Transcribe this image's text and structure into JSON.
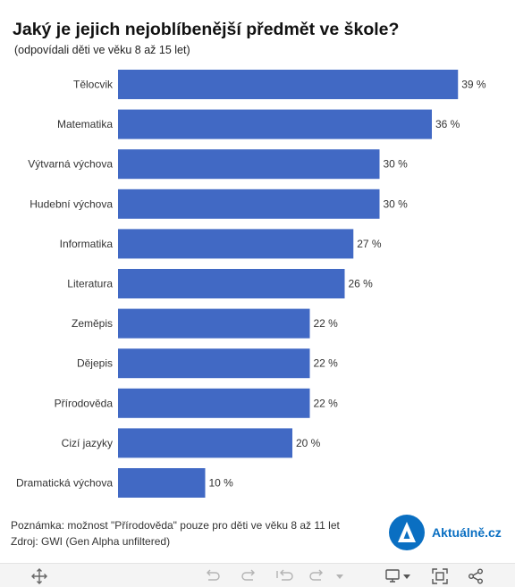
{
  "header": {
    "title": "Jaký je jejich nejoblíbenější předmět ve škole?",
    "subtitle": "(odpovídali děti ve věku 8 až 15 let)"
  },
  "chart_data": {
    "type": "bar",
    "orientation": "horizontal",
    "title": "Jaký je jejich nejoblíbenější předmět ve škole?",
    "subtitle": "(odpovídali děti ve věku 8 až 15 let)",
    "categories": [
      "Tělocvik",
      "Matematika",
      "Výtvarná výchova",
      "Hudební výchova",
      "Informatika",
      "Literatura",
      "Zeměpis",
      "Dějepis",
      "Přírodověda",
      "Cizí jazyky",
      "Dramatická výchova"
    ],
    "values": [
      39,
      36,
      30,
      30,
      27,
      26,
      22,
      22,
      22,
      20,
      10
    ],
    "value_labels": [
      "39 %",
      "36 %",
      "30 %",
      "30 %",
      "27 %",
      "26 %",
      "22 %",
      "22 %",
      "22 %",
      "20 %",
      "10 %"
    ],
    "unit": "%",
    "xlim": [
      0,
      40
    ],
    "grid": false,
    "bar_color": "#4169c4"
  },
  "footer": {
    "note": "Poznámka: možnost \"Přírodověda\" pouze pro děti ve věku 8 až 11 let",
    "source": "Zdroj: GWI (Gen Alpha unfiltered)"
  },
  "brand": {
    "logo_letter": "A",
    "name": "Aktuálně.cz",
    "color": "#0a6fc2"
  },
  "toolbar": {
    "icons": [
      "move-icon",
      "undo-icon",
      "redo-icon",
      "revert-icon",
      "forward-icon",
      "dropdown-arrow-icon",
      "download-icon",
      "fullscreen-icon",
      "share-icon"
    ]
  }
}
